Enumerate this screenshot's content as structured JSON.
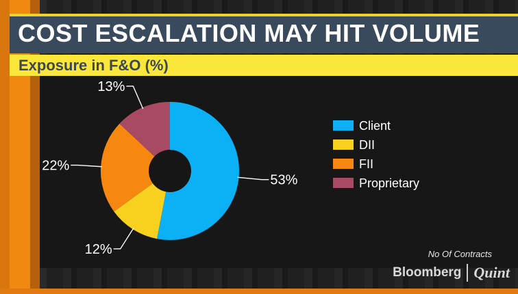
{
  "header": {
    "title": "COST ESCALATION MAY HIT VOLUME",
    "subtitle": "Exposure in F&O (%)"
  },
  "footer": {
    "note": "No Of Contracts",
    "logo_part1": "Bloomberg",
    "logo_part2": "Quint"
  },
  "colors": {
    "client": "#0bb0f5",
    "dii": "#f7d11e",
    "fii": "#f6880f",
    "proprietary": "#a84a63"
  },
  "chart_data": {
    "type": "pie",
    "donut": true,
    "slices": [
      {
        "label": "Client",
        "value": 53,
        "display": "53%",
        "color": "#0bb0f5"
      },
      {
        "label": "DII",
        "value": 12,
        "display": "12%",
        "color": "#f7d11e"
      },
      {
        "label": "FII",
        "value": 22,
        "display": "22%",
        "color": "#f6880f"
      },
      {
        "label": "Proprietary",
        "value": 13,
        "display": "13%",
        "color": "#a84a63"
      }
    ],
    "legend": [
      "Client",
      "DII",
      "FII",
      "Proprietary"
    ],
    "legend_position": "right"
  }
}
